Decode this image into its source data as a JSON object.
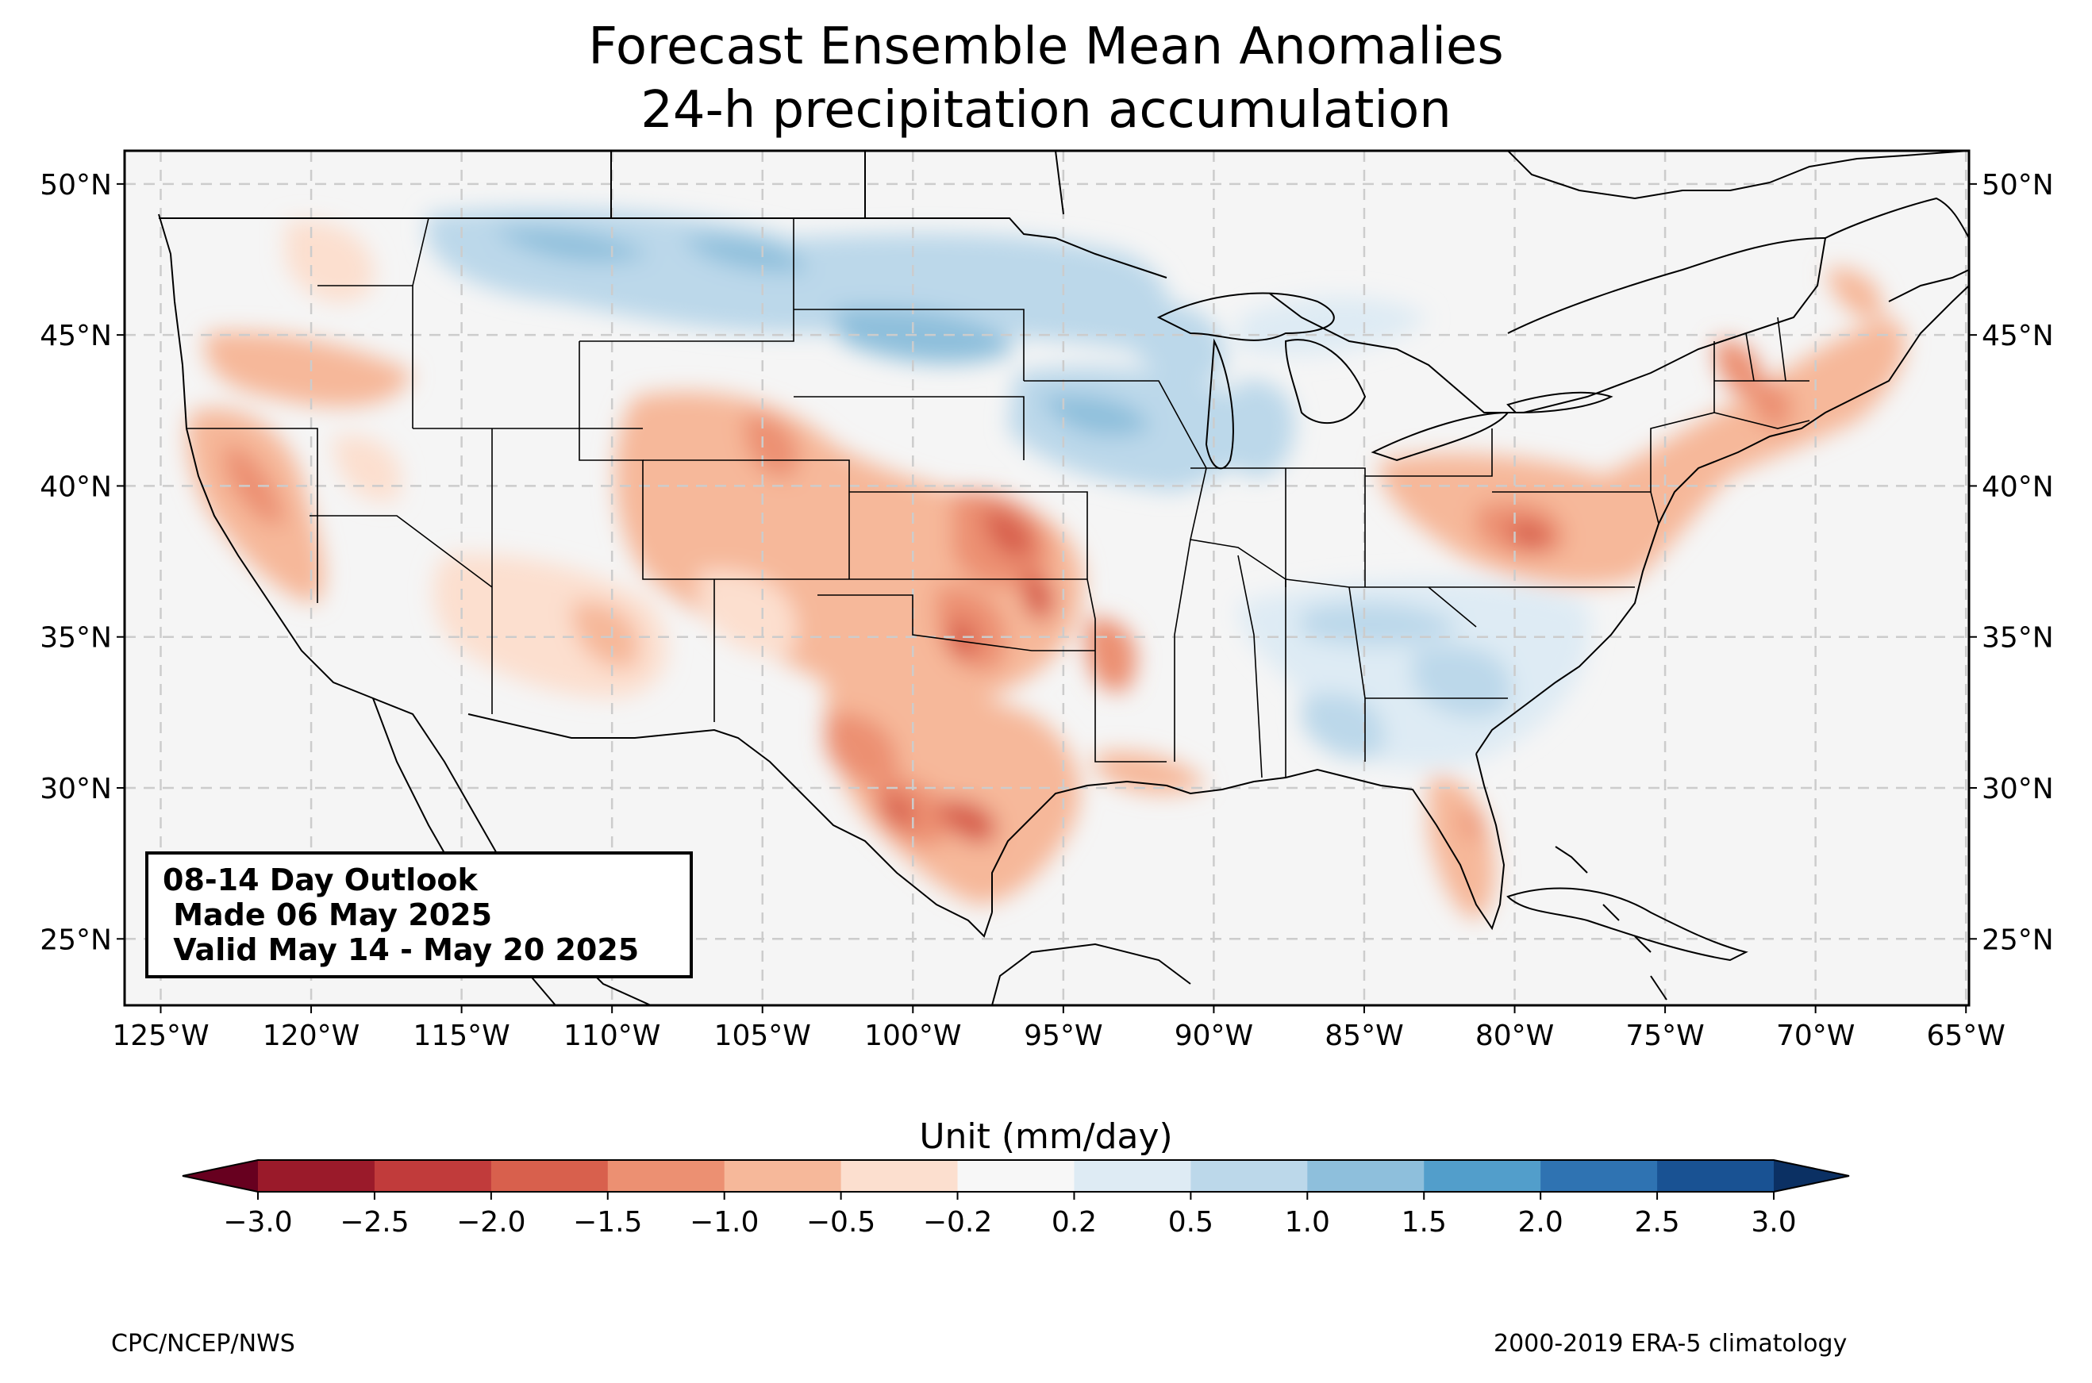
{
  "title": {
    "line1": "Forecast Ensemble Mean Anomalies",
    "line2": "24-h precipitation accumulation"
  },
  "map": {
    "lat_labels": [
      "50°N",
      "45°N",
      "40°N",
      "35°N",
      "30°N",
      "25°N"
    ],
    "lat_values": [
      50,
      45,
      40,
      35,
      30,
      25
    ],
    "lon_labels": [
      "125°W",
      "120°W",
      "115°W",
      "110°W",
      "105°W",
      "100°W",
      "95°W",
      "90°W",
      "85°W",
      "80°W",
      "75°W",
      "70°W",
      "65°W"
    ],
    "lon_values": [
      -125,
      -120,
      -115,
      -110,
      -105,
      -100,
      -95,
      -90,
      -85,
      -80,
      -75,
      -70,
      -65
    ],
    "extent": {
      "lon": [
        -126.2,
        -64.9
      ],
      "lat": [
        22.8,
        51.1
      ]
    },
    "gridlines": true,
    "colors": {
      "land": "#f5f5f5",
      "border": "#000000",
      "grid": "#cccccc"
    }
  },
  "outlook": {
    "line1": "08-14 Day Outlook",
    "line2": " Made 06 May 2025",
    "line3": " Valid May 14 - May 20 2025"
  },
  "colorbar": {
    "label": "Unit (mm/day)",
    "tick_labels": [
      "−3.0",
      "−2.5",
      "−2.0",
      "−1.5",
      "−1.0",
      "−0.5",
      "−0.2",
      "0.2",
      "0.5",
      "1.0",
      "1.5",
      "2.0",
      "2.5",
      "3.0"
    ],
    "levels": [
      -3.0,
      -2.5,
      -2.0,
      -1.5,
      -1.0,
      -0.5,
      -0.2,
      0.2,
      0.5,
      1.0,
      1.5,
      2.0,
      2.5,
      3.0
    ],
    "colors": [
      "#9a1a2a",
      "#c13b3b",
      "#d8604d",
      "#ec9072",
      "#f6b89a",
      "#fcdfcf",
      "#f7f7f7",
      "#deebf4",
      "#bcd8ea",
      "#8ebfdc",
      "#529ecb",
      "#2f73b2",
      "#195293"
    ],
    "under_color": "#67001f",
    "over_color": "#0b3063"
  },
  "footer": {
    "left": "CPC/NCEP/NWS",
    "right": "2000-2019 ERA-5 climatology"
  }
}
